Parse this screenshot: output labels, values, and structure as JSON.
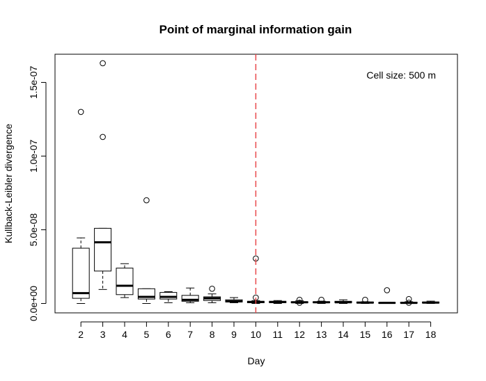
{
  "chart_data": {
    "type": "boxplot",
    "title": "Point of marginal information gain",
    "xlabel": "Day",
    "ylabel": "Kullback-Leibler divergence",
    "annotation": "Cell size: 500 m",
    "ylim": [
      -3e-09,
      1.62e-07
    ],
    "y_ticks": [
      0,
      5e-08,
      1e-07,
      1.5e-07
    ],
    "y_tick_labels": [
      "0.0e+00",
      "5.0e-08",
      "1.0e-07",
      "1.5e-07"
    ],
    "reference_line": {
      "x": 10,
      "color": "#e8474a",
      "style": "dashed"
    },
    "categories": [
      "2",
      "3",
      "4",
      "5",
      "6",
      "7",
      "8",
      "9",
      "10",
      "11",
      "12",
      "13",
      "14",
      "15",
      "16",
      "17",
      "18"
    ],
    "boxes": [
      {
        "day": "2",
        "whisker_low": 0.0,
        "q1": 3.5e-09,
        "median": 7e-09,
        "q3": 3.75e-08,
        "whisker_high": 4.45e-08,
        "outliers": [
          1.3e-07
        ]
      },
      {
        "day": "3",
        "whisker_low": 9.5e-09,
        "q1": 2.2e-08,
        "median": 4.15e-08,
        "q3": 5.1e-08,
        "whisker_high": 5.1e-08,
        "outliers": [
          1.13e-07,
          1.63e-07
        ]
      },
      {
        "day": "4",
        "whisker_low": 4e-09,
        "q1": 6e-09,
        "median": 1.2e-08,
        "q3": 2.4e-08,
        "whisker_high": 2.7e-08,
        "outliers": []
      },
      {
        "day": "5",
        "whisker_low": 0.0,
        "q1": 3e-09,
        "median": 4.5e-09,
        "q3": 1e-08,
        "whisker_high": 1e-08,
        "outliers": [
          7e-08
        ]
      },
      {
        "day": "6",
        "whisker_low": 5e-10,
        "q1": 3e-09,
        "median": 4.5e-09,
        "q3": 7.5e-09,
        "whisker_high": 8e-09,
        "outliers": []
      },
      {
        "day": "7",
        "whisker_low": 5e-10,
        "q1": 1.5e-09,
        "median": 2.5e-09,
        "q3": 5.5e-09,
        "whisker_high": 1.05e-08,
        "outliers": []
      },
      {
        "day": "8",
        "whisker_low": 5e-10,
        "q1": 2e-09,
        "median": 3.5e-09,
        "q3": 4.5e-09,
        "whisker_high": 6.5e-09,
        "outliers": [
          1e-08
        ]
      },
      {
        "day": "9",
        "whisker_low": 5e-10,
        "q1": 1e-09,
        "median": 1.5e-09,
        "q3": 2.5e-09,
        "whisker_high": 4e-09,
        "outliers": []
      },
      {
        "day": "10",
        "whisker_low": 0.0,
        "q1": 5e-10,
        "median": 1e-09,
        "q3": 1.5e-09,
        "whisker_high": 2e-09,
        "outliers": [
          3.05e-08,
          4e-09
        ]
      },
      {
        "day": "11",
        "whisker_low": 0.0,
        "q1": 5e-10,
        "median": 1e-09,
        "q3": 1.5e-09,
        "whisker_high": 2e-09,
        "outliers": []
      },
      {
        "day": "12",
        "whisker_low": 0.0,
        "q1": 5e-10,
        "median": 8e-10,
        "q3": 1.2e-09,
        "whisker_high": 1.8e-09,
        "outliers": [
          2.5e-09,
          5e-10
        ]
      },
      {
        "day": "13",
        "whisker_low": 0.0,
        "q1": 5e-10,
        "median": 8e-10,
        "q3": 1.2e-09,
        "whisker_high": 1.6e-09,
        "outliers": [
          2.5e-09
        ]
      },
      {
        "day": "14",
        "whisker_low": 0.0,
        "q1": 5e-10,
        "median": 8e-10,
        "q3": 1.5e-09,
        "whisker_high": 2.5e-09,
        "outliers": []
      },
      {
        "day": "15",
        "whisker_low": 0.0,
        "q1": 3e-10,
        "median": 6e-10,
        "q3": 1e-09,
        "whisker_high": 1.2e-09,
        "outliers": [
          2.5e-09
        ]
      },
      {
        "day": "16",
        "whisker_low": 0.0,
        "q1": 2e-10,
        "median": 4e-10,
        "q3": 6e-10,
        "whisker_high": 8e-10,
        "outliers": [
          9e-09
        ]
      },
      {
        "day": "17",
        "whisker_low": 0.0,
        "q1": 2e-10,
        "median": 4e-10,
        "q3": 8e-10,
        "whisker_high": 1.2e-09,
        "outliers": [
          3e-09,
          5e-10
        ]
      },
      {
        "day": "18",
        "whisker_low": 0.0,
        "q1": 3e-10,
        "median": 6e-10,
        "q3": 1e-09,
        "whisker_high": 1.6e-09,
        "outliers": []
      }
    ]
  }
}
